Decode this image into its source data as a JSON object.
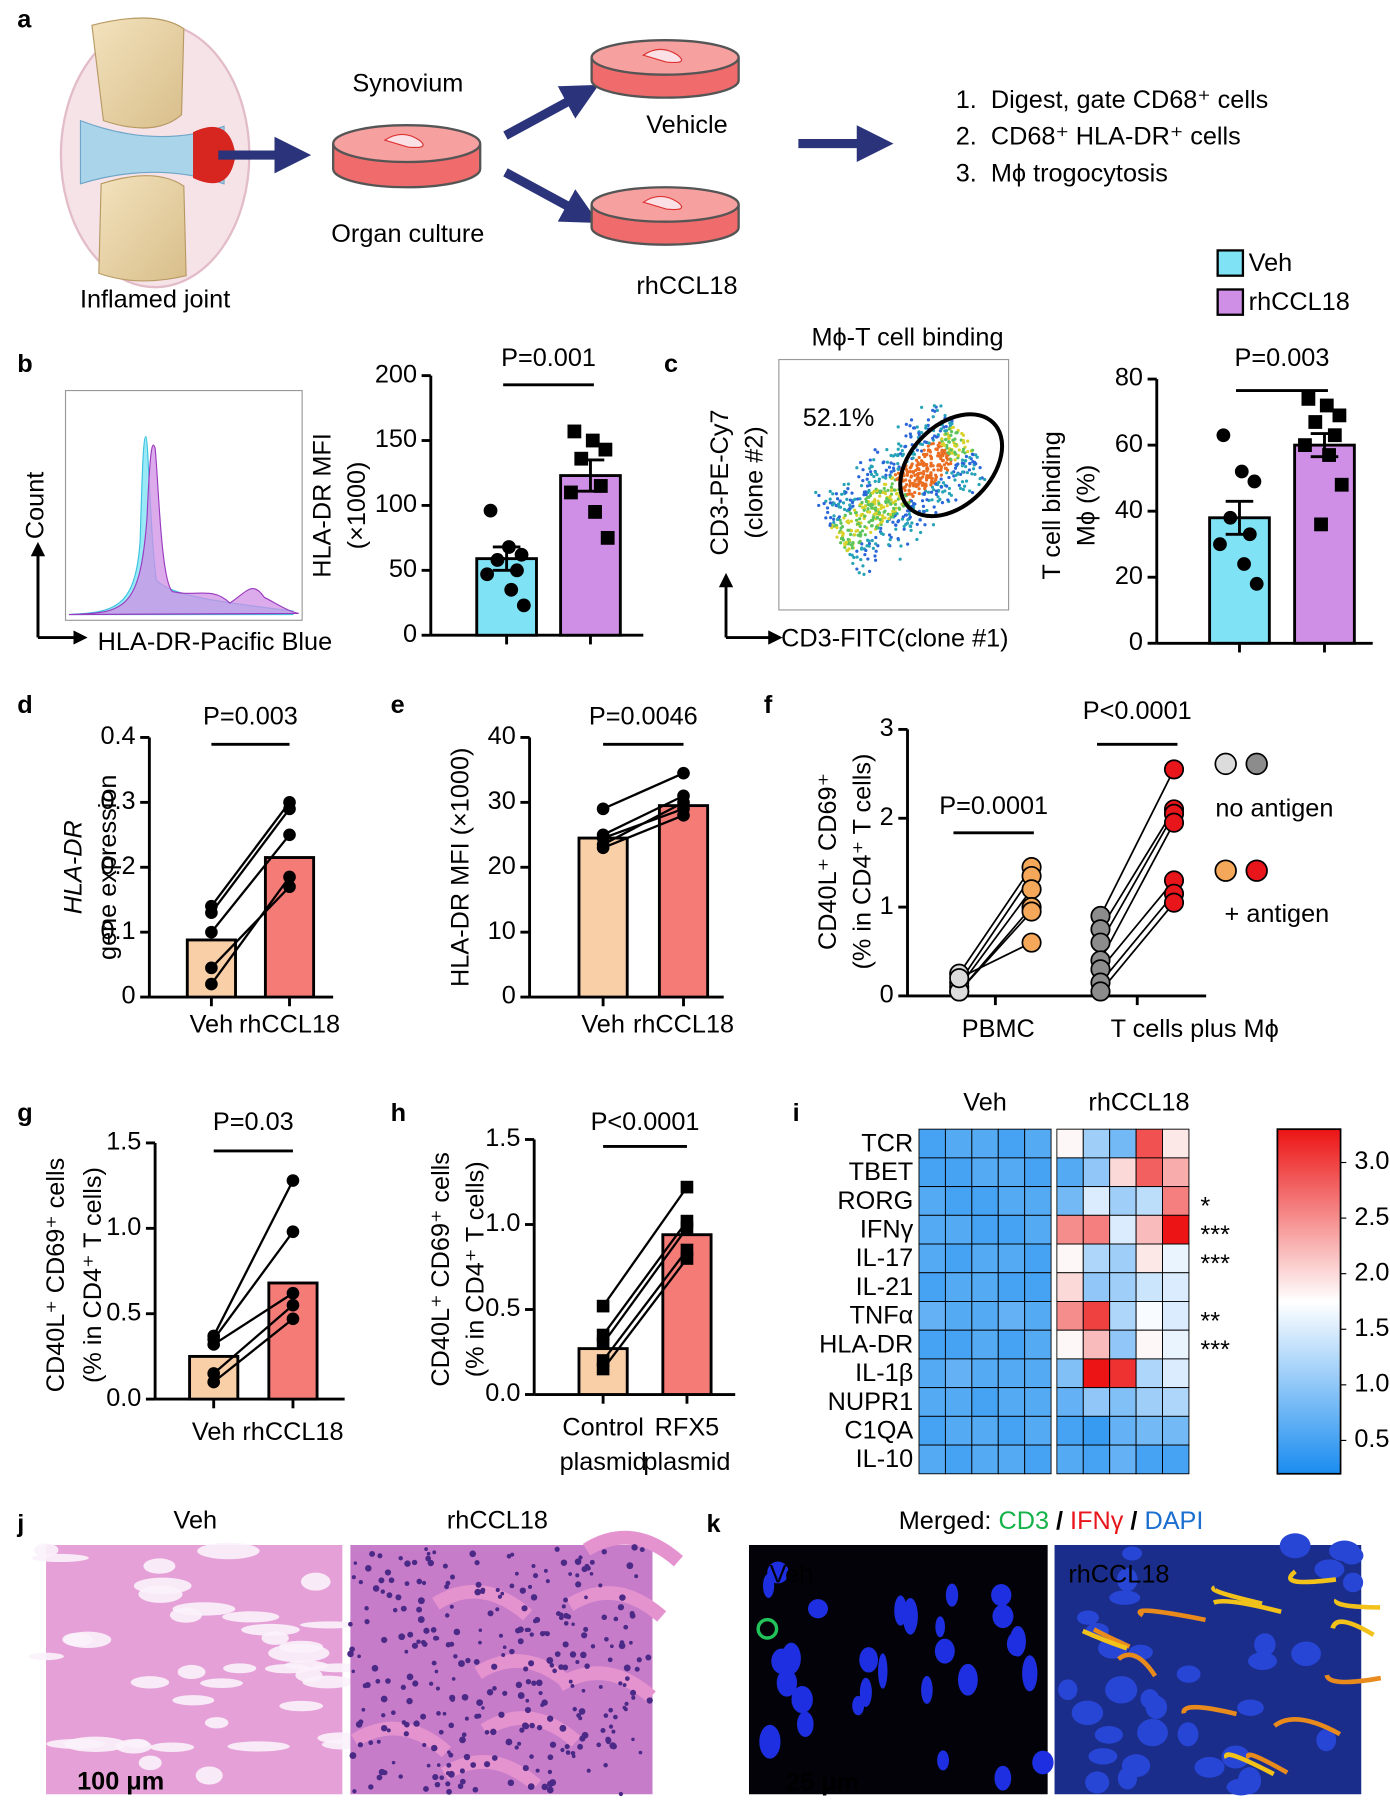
{
  "panel_labels": [
    "a",
    "b",
    "c",
    "d",
    "e",
    "f",
    "g",
    "h",
    "i",
    "j",
    "k"
  ],
  "schematic": {
    "joint": "Inflamed joint",
    "synovium": "Synovium",
    "culture": "Organ culture",
    "vehicle": "Vehicle",
    "treatment": "rhCCL18",
    "steps": [
      "1.  Digest, gate CD68⁺ cells",
      "2.  CD68⁺ HLA-DR⁺ cells",
      "3.  Mϕ trogocytosis"
    ]
  },
  "legend": [
    {
      "name": "Veh",
      "color": "#7fe3f5"
    },
    {
      "name": "rhCCL18",
      "color": "#cf8fe6"
    }
  ],
  "chart_data": [
    {
      "type": "flow-histogram",
      "ylabel": [
        "Count"
      ],
      "xlabel": "HLA-DR-Pacific Blue"
    },
    {
      "type": "bar-dots",
      "ylabel": [
        "HLA-DR MFI",
        "(×1000)"
      ],
      "ylim": [
        0,
        200
      ],
      "yticks": [
        0,
        50,
        100,
        150,
        200
      ],
      "annotation": "P=0.001",
      "series": [
        {
          "color": "#7fe3f5",
          "marker": "circle",
          "value": 59,
          "error": 9,
          "points": [
            96,
            68,
            62,
            58,
            50,
            47,
            35,
            23
          ]
        },
        {
          "color": "#cf8fe6",
          "marker": "square",
          "value": 123,
          "error": 12,
          "points": [
            157,
            150,
            143,
            136,
            115,
            110,
            95,
            75
          ]
        }
      ]
    },
    {
      "type": "flow-dot",
      "title": "Mϕ-T cell binding",
      "gate_label": "52.1%",
      "ylabel": [
        "CD3-PE-Cy7",
        "(clone #2)"
      ],
      "xlabel": "CD3-FITC(clone #1)"
    },
    {
      "type": "bar-dots",
      "ylabel": [
        "T cell binding",
        "Mϕ (%)"
      ],
      "ylim": [
        0,
        80
      ],
      "yticks": [
        0,
        20,
        40,
        60,
        80
      ],
      "annotation": "P=0.003",
      "series": [
        {
          "color": "#7fe3f5",
          "marker": "circle",
          "value": 38,
          "error": 5,
          "points": [
            63,
            52,
            49,
            38,
            33,
            30,
            24,
            18
          ]
        },
        {
          "color": "#cf8fe6",
          "marker": "square",
          "value": 60,
          "error": 3.5,
          "points": [
            74,
            72,
            69,
            67,
            63,
            60,
            57,
            48,
            36
          ]
        }
      ]
    },
    {
      "type": "paired-bar",
      "ylabel": [
        "HLA-DR",
        "gene expression"
      ],
      "ylabel_italic": [
        true,
        false
      ],
      "ylim": [
        0,
        0.4
      ],
      "yticks": [
        0,
        0.1,
        0.2,
        0.3,
        0.4
      ],
      "annotation": "P=0.003",
      "categories": [
        [
          "Veh"
        ],
        [
          "rhCCL18"
        ]
      ],
      "series": [
        {
          "color": "#f9cfa8",
          "marker": "circle",
          "value": 0.088,
          "points": [
            0.02,
            0.045,
            0.1,
            0.13,
            0.14
          ]
        },
        {
          "color": "#f57b77",
          "marker": "circle",
          "value": 0.215,
          "points": [
            0.185,
            0.17,
            0.25,
            0.29,
            0.3
          ]
        }
      ]
    },
    {
      "type": "paired-bar",
      "ylabel": [
        "HLA-DR MFI (×1000)"
      ],
      "ylim": [
        0,
        40
      ],
      "yticks": [
        0,
        10,
        20,
        30,
        40
      ],
      "annotation": "P=0.0046",
      "categories": [
        [
          "Veh"
        ],
        [
          "rhCCL18"
        ]
      ],
      "series": [
        {
          "color": "#f9cfa8",
          "marker": "circle",
          "value": 24.5,
          "points": [
            29,
            25,
            23.5,
            23,
            24.5
          ]
        },
        {
          "color": "#f57b77",
          "marker": "circle",
          "value": 29.5,
          "points": [
            34.5,
            31,
            30,
            28,
            29
          ]
        }
      ]
    },
    {
      "type": "paired-dots",
      "ylabel": [
        "CD40L⁺ CD69⁺",
        "(% in CD4⁺ T cells)"
      ],
      "ylim": [
        0,
        3
      ],
      "yticks": [
        0,
        1,
        2,
        3
      ],
      "legend": [
        {
          "label": "no antigen",
          "colors": [
            "#dcdcdc",
            "#8c8c8c"
          ]
        },
        {
          "label": "+ antigen",
          "colors": [
            "#f5a75a",
            "#e8151b"
          ]
        }
      ],
      "groups": [
        {
          "category": "PBMC",
          "annotation": "P=0.0001",
          "before": [
            0.25,
            0.15,
            0.1,
            0.05,
            0.05,
            0.2
          ],
          "after": [
            1.45,
            1.35,
            1.2,
            1.0,
            0.95,
            0.6
          ]
        },
        {
          "category": "T cells plus Mϕ",
          "annotation": "P<0.0001",
          "before": [
            0.9,
            0.75,
            0.6,
            0.4,
            0.3,
            0.15,
            0.05
          ],
          "after": [
            2.55,
            2.1,
            2.05,
            1.95,
            1.3,
            1.15,
            1.05
          ]
        }
      ]
    },
    {
      "type": "paired-bar",
      "ylabel": [
        "CD40L⁺ CD69⁺ cells",
        "(% in CD4⁺ T cells)"
      ],
      "ylim": [
        0,
        1.5
      ],
      "yticks": [
        {
          "value": 0,
          "label": "0.0"
        },
        0.5,
        {
          "value": 1,
          "label": "1.0"
        },
        1.5
      ],
      "annotation": "P=0.03",
      "categories": [
        [
          "Veh"
        ],
        [
          "rhCCL18"
        ]
      ],
      "series": [
        {
          "color": "#f9cfa8",
          "marker": "circle",
          "value": 0.25,
          "points": [
            0.1,
            0.15,
            0.32,
            0.35,
            0.37
          ]
        },
        {
          "color": "#f57b77",
          "marker": "circle",
          "value": 0.68,
          "points": [
            0.47,
            0.55,
            0.62,
            0.98,
            1.28
          ]
        }
      ]
    },
    {
      "type": "paired-bar",
      "ylabel": [
        "CD40L⁺ CD69⁺ cells",
        "(% in CD4⁺ T cells)"
      ],
      "ylim": [
        0,
        1.5
      ],
      "yticks": [
        {
          "value": 0,
          "label": "0.0"
        },
        0.5,
        {
          "value": 1,
          "label": "1.0"
        },
        1.5
      ],
      "annotation": "P<0.0001",
      "categories": [
        [
          "Control",
          "plasmid"
        ],
        [
          "RFX5",
          "plasmid"
        ]
      ],
      "series": [
        {
          "color": "#f9cfa8",
          "marker": "square",
          "value": 0.27,
          "points": [
            0.15,
            0.2,
            0.3,
            0.35,
            0.52
          ]
        },
        {
          "color": "#f57b77",
          "marker": "square",
          "value": 0.94,
          "points": [
            0.8,
            0.85,
            0.98,
            1.02,
            1.22
          ]
        }
      ]
    },
    {
      "type": "heatmap",
      "column_groups": [
        "Veh",
        "rhCCL18"
      ],
      "clim": [
        0.2,
        3.3
      ],
      "colors": [
        "#1a8cf0",
        "#ffffff",
        "#ec1414"
      ],
      "cticks": [
        0.5,
        {
          "value": 1,
          "label": "1.0"
        },
        1.5,
        {
          "value": 2,
          "label": "2.0"
        },
        2.5,
        {
          "value": 3,
          "label": "3.0"
        }
      ],
      "rows": [
        {
          "label": "TCR",
          "stars": null,
          "values": [
            0.5,
            0.6,
            0.6,
            0.5,
            0.6,
            1.8,
            1.1,
            0.8,
            2.9,
            1.9
          ]
        },
        {
          "label": "TBET",
          "stars": null,
          "values": [
            0.5,
            0.5,
            0.6,
            0.6,
            0.5,
            0.6,
            1.0,
            2.0,
            2.8,
            2.3
          ]
        },
        {
          "label": "RORG",
          "stars": "*",
          "values": [
            0.6,
            0.5,
            0.5,
            0.6,
            0.6,
            0.8,
            1.5,
            1.1,
            1.3,
            2.6
          ]
        },
        {
          "label": "IFNγ",
          "stars": "***",
          "values": [
            0.6,
            0.6,
            0.5,
            0.5,
            0.6,
            2.5,
            2.6,
            1.5,
            2.2,
            3.3
          ]
        },
        {
          "label": "IL-17",
          "stars": "***",
          "values": [
            0.6,
            0.5,
            0.6,
            0.6,
            0.5,
            1.8,
            1.2,
            1.1,
            1.9,
            1.6
          ]
        },
        {
          "label": "IL-21",
          "stars": null,
          "values": [
            0.5,
            0.6,
            0.6,
            0.5,
            0.5,
            2.0,
            1.0,
            1.1,
            1.4,
            1.5
          ]
        },
        {
          "label": "TNFα",
          "stars": "**",
          "values": [
            0.7,
            0.6,
            0.6,
            0.7,
            0.6,
            2.5,
            3.0,
            1.2,
            1.7,
            1.5
          ]
        },
        {
          "label": "HLA-DR",
          "stars": "***",
          "values": [
            0.5,
            0.5,
            0.6,
            0.5,
            0.6,
            1.8,
            2.2,
            1.0,
            1.8,
            1.6
          ]
        },
        {
          "label": "IL-1β",
          "stars": null,
          "values": [
            0.6,
            0.7,
            0.6,
            0.6,
            0.6,
            0.9,
            3.3,
            3.1,
            1.2,
            1.5
          ]
        },
        {
          "label": "NUPR1",
          "stars": null,
          "values": [
            0.6,
            0.6,
            0.5,
            0.6,
            0.6,
            0.7,
            1.0,
            0.9,
            1.1,
            1.2
          ]
        },
        {
          "label": "C1QA",
          "stars": null,
          "values": [
            0.5,
            0.6,
            0.6,
            0.5,
            0.6,
            0.5,
            0.4,
            0.7,
            0.8,
            0.8
          ]
        },
        {
          "label": "IL-10",
          "stars": null,
          "values": [
            0.6,
            0.5,
            0.6,
            0.6,
            0.5,
            0.6,
            0.5,
            0.7,
            0.5,
            0.5
          ]
        }
      ]
    }
  ],
  "histology": {
    "labels": [
      "Veh",
      "rhCCL18"
    ],
    "scale": "100 μm"
  },
  "fluorescence": {
    "title": [
      {
        "text": "Merged: ",
        "color": "#000000"
      },
      {
        "text": "CD3",
        "color": "#16b24a"
      },
      {
        "text": " / ",
        "color": "#000000"
      },
      {
        "text": "IFNγ",
        "color": "#e8151b"
      },
      {
        "text": " / ",
        "color": "#000000"
      },
      {
        "text": "DAPI",
        "color": "#1a6fd0"
      }
    ],
    "labels": [
      "Veh",
      "rhCCL18"
    ],
    "scale": "25 μm"
  }
}
